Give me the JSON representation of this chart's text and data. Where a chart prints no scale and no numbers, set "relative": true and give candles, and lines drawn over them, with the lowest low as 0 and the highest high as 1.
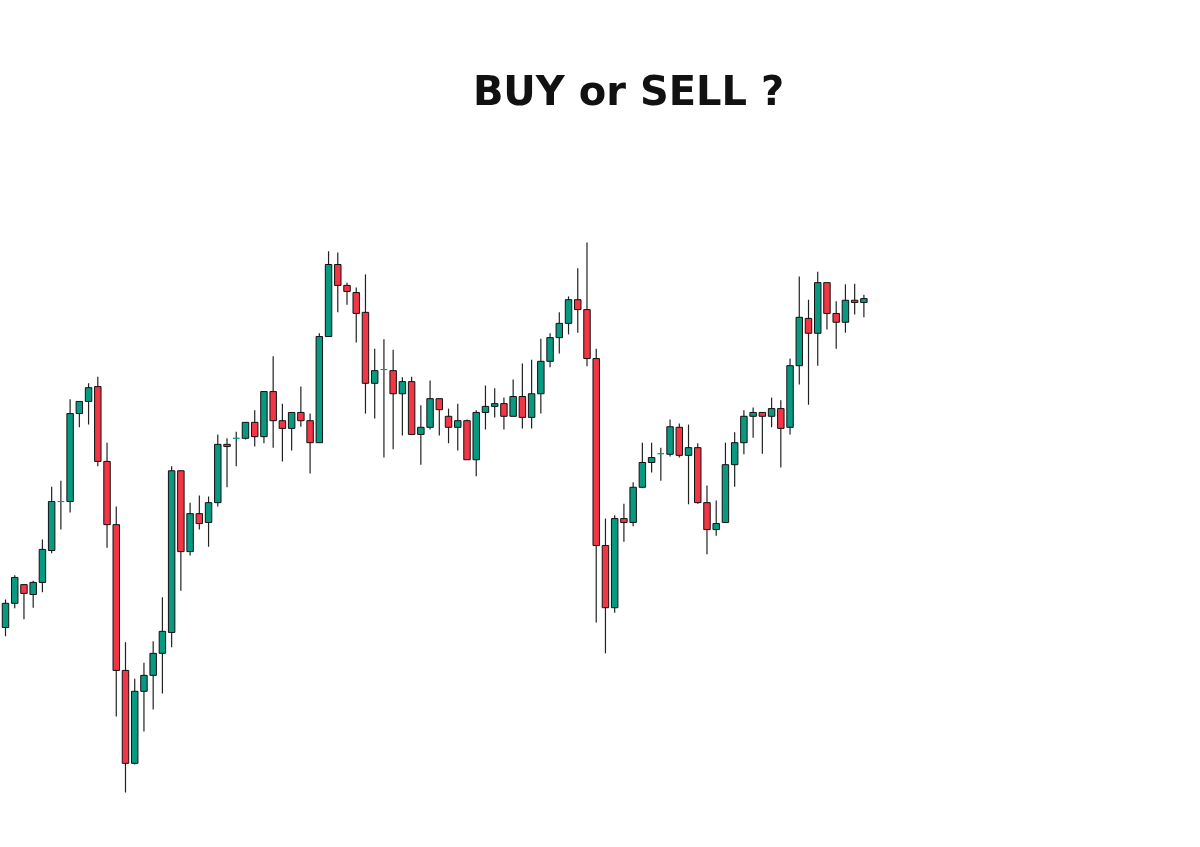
{
  "chart_data": {
    "type": "candlestick",
    "title": "BUY or SELL ?",
    "relative": true,
    "categories": [
      null,
      null,
      null,
      null,
      null,
      null,
      null,
      null,
      null,
      null,
      null,
      null,
      null,
      null,
      null,
      null,
      null,
      null,
      null,
      null,
      null,
      null,
      null,
      null,
      null,
      null,
      null,
      null,
      null,
      null,
      null,
      null,
      null,
      null,
      null,
      null,
      null,
      null,
      null,
      null,
      null,
      null,
      null,
      null,
      null,
      null,
      null,
      null,
      null,
      null,
      null,
      null,
      null,
      null,
      null,
      null,
      null,
      null,
      null,
      null,
      null,
      null,
      null,
      null,
      null,
      null,
      null,
      null,
      null,
      null,
      null,
      null,
      null,
      null,
      null,
      null,
      null,
      null,
      null,
      null,
      null,
      null,
      null,
      null,
      null,
      null,
      null,
      null,
      null,
      null,
      null,
      null,
      null,
      null
    ],
    "ohlc": [
      [
        0.3,
        0.351,
        0.284,
        0.344
      ],
      [
        0.344,
        0.395,
        0.335,
        0.391
      ],
      [
        0.378,
        0.378,
        0.315,
        0.362
      ],
      [
        0.36,
        0.385,
        0.336,
        0.382
      ],
      [
        0.382,
        0.46,
        0.364,
        0.442
      ],
      [
        0.44,
        0.556,
        0.435,
        0.529
      ],
      [
        0.529,
        0.567,
        0.478,
        0.529
      ],
      [
        0.529,
        0.715,
        0.509,
        0.689
      ],
      [
        0.689,
        0.711,
        0.664,
        0.711
      ],
      [
        0.711,
        0.744,
        0.669,
        0.736
      ],
      [
        0.738,
        0.756,
        0.593,
        0.602
      ],
      [
        0.602,
        0.636,
        0.445,
        0.487
      ],
      [
        0.487,
        0.52,
        0.138,
        0.222
      ],
      [
        0.222,
        0.273,
        0.0,
        0.053
      ],
      [
        0.053,
        0.207,
        0.051,
        0.184
      ],
      [
        0.184,
        0.236,
        0.111,
        0.213
      ],
      [
        0.213,
        0.275,
        0.151,
        0.253
      ],
      [
        0.253,
        0.355,
        0.18,
        0.293
      ],
      [
        0.291,
        0.593,
        0.264,
        0.585
      ],
      [
        0.585,
        0.585,
        0.367,
        0.438
      ],
      [
        0.438,
        0.527,
        0.431,
        0.507
      ],
      [
        0.507,
        0.54,
        0.478,
        0.489
      ],
      [
        0.491,
        0.538,
        0.447,
        0.527
      ],
      [
        0.527,
        0.651,
        0.52,
        0.633
      ],
      [
        0.633,
        0.644,
        0.555,
        0.629
      ],
      [
        0.644,
        0.656,
        0.593,
        0.644
      ],
      [
        0.644,
        0.673,
        0.642,
        0.673
      ],
      [
        0.673,
        0.695,
        0.629,
        0.647
      ],
      [
        0.647,
        0.729,
        0.635,
        0.729
      ],
      [
        0.729,
        0.793,
        0.627,
        0.676
      ],
      [
        0.676,
        0.707,
        0.602,
        0.662
      ],
      [
        0.662,
        0.691,
        0.622,
        0.691
      ],
      [
        0.691,
        0.738,
        0.665,
        0.676
      ],
      [
        0.676,
        0.689,
        0.58,
        0.636
      ],
      [
        0.636,
        0.835,
        0.636,
        0.829
      ],
      [
        0.829,
        0.984,
        0.829,
        0.96
      ],
      [
        0.96,
        0.982,
        0.873,
        0.922
      ],
      [
        0.922,
        0.927,
        0.887,
        0.911
      ],
      [
        0.909,
        0.918,
        0.818,
        0.871
      ],
      [
        0.873,
        0.942,
        0.689,
        0.744
      ],
      [
        0.744,
        0.807,
        0.68,
        0.767
      ],
      [
        0.769,
        0.824,
        0.609,
        0.769
      ],
      [
        0.767,
        0.805,
        0.624,
        0.725
      ],
      [
        0.725,
        0.755,
        0.649,
        0.747
      ],
      [
        0.747,
        0.756,
        0.651,
        0.651
      ],
      [
        0.651,
        0.704,
        0.596,
        0.664
      ],
      [
        0.664,
        0.749,
        0.66,
        0.716
      ],
      [
        0.716,
        0.716,
        0.649,
        0.696
      ],
      [
        0.684,
        0.698,
        0.635,
        0.664
      ],
      [
        0.664,
        0.707,
        0.622,
        0.676
      ],
      [
        0.676,
        0.678,
        0.605,
        0.605
      ],
      [
        0.605,
        0.695,
        0.575,
        0.691
      ],
      [
        0.691,
        0.74,
        0.66,
        0.702
      ],
      [
        0.702,
        0.735,
        0.682,
        0.707
      ],
      [
        0.707,
        0.718,
        0.66,
        0.684
      ],
      [
        0.684,
        0.751,
        0.684,
        0.72
      ],
      [
        0.72,
        0.78,
        0.662,
        0.682
      ],
      [
        0.682,
        0.787,
        0.662,
        0.725
      ],
      [
        0.725,
        0.825,
        0.689,
        0.784
      ],
      [
        0.784,
        0.835,
        0.773,
        0.827
      ],
      [
        0.827,
        0.873,
        0.798,
        0.853
      ],
      [
        0.853,
        0.902,
        0.833,
        0.896
      ],
      [
        0.896,
        0.953,
        0.836,
        0.878
      ],
      [
        0.878,
        1.0,
        0.775,
        0.789
      ],
      [
        0.789,
        0.807,
        0.309,
        0.449
      ],
      [
        0.449,
        0.498,
        0.253,
        0.336
      ],
      [
        0.336,
        0.504,
        0.327,
        0.498
      ],
      [
        0.498,
        0.525,
        0.456,
        0.491
      ],
      [
        0.491,
        0.564,
        0.484,
        0.555
      ],
      [
        0.555,
        0.636,
        0.553,
        0.6
      ],
      [
        0.6,
        0.636,
        0.582,
        0.609
      ],
      [
        0.616,
        0.627,
        0.567,
        0.616
      ],
      [
        0.615,
        0.678,
        0.611,
        0.665
      ],
      [
        0.664,
        0.671,
        0.609,
        0.613
      ],
      [
        0.613,
        0.669,
        0.524,
        0.627
      ],
      [
        0.627,
        0.635,
        0.525,
        0.527
      ],
      [
        0.527,
        0.558,
        0.433,
        0.478
      ],
      [
        0.478,
        0.531,
        0.467,
        0.489
      ],
      [
        0.491,
        0.636,
        0.491,
        0.596
      ],
      [
        0.596,
        0.655,
        0.556,
        0.636
      ],
      [
        0.636,
        0.695,
        0.615,
        0.684
      ],
      [
        0.684,
        0.7,
        0.645,
        0.691
      ],
      [
        0.691,
        0.691,
        0.616,
        0.684
      ],
      [
        0.684,
        0.718,
        0.664,
        0.698
      ],
      [
        0.698,
        0.713,
        0.591,
        0.662
      ],
      [
        0.664,
        0.789,
        0.651,
        0.776
      ],
      [
        0.776,
        0.938,
        0.742,
        0.864
      ],
      [
        0.862,
        0.896,
        0.705,
        0.835
      ],
      [
        0.835,
        0.947,
        0.776,
        0.927
      ],
      [
        0.927,
        0.927,
        0.842,
        0.871
      ],
      [
        0.871,
        0.893,
        0.807,
        0.855
      ],
      [
        0.855,
        0.924,
        0.836,
        0.895
      ],
      [
        0.895,
        0.925,
        0.869,
        0.891
      ],
      [
        0.891,
        0.905,
        0.864,
        0.898
      ]
    ],
    "colors": [
      "#089981",
      "#089981",
      "#f23645",
      "#089981",
      "#089981",
      "#089981",
      "#089981",
      "#089981",
      "#089981",
      "#089981",
      "#f23645",
      "#f23645",
      "#f23645",
      "#f23645",
      "#089981",
      "#089981",
      "#089981",
      "#089981",
      "#089981",
      "#f23645",
      "#089981",
      "#f23645",
      "#089981",
      "#089981",
      "#f23645",
      "#089981",
      "#089981",
      "#f23645",
      "#089981",
      "#f23645",
      "#f23645",
      "#089981",
      "#f23645",
      "#f23645",
      "#089981",
      "#089981",
      "#f23645",
      "#f23645",
      "#f23645",
      "#f23645",
      "#089981",
      "#089981",
      "#f23645",
      "#089981",
      "#f23645",
      "#089981",
      "#089981",
      "#f23645",
      "#f23645",
      "#089981",
      "#f23645",
      "#089981",
      "#089981",
      "#089981",
      "#f23645",
      "#089981",
      "#f23645",
      "#089981",
      "#089981",
      "#089981",
      "#089981",
      "#089981",
      "#f23645",
      "#f23645",
      "#f23645",
      "#f23645",
      "#089981",
      "#f23645",
      "#089981",
      "#089981",
      "#089981",
      "#089981",
      "#089981",
      "#f23645",
      "#089981",
      "#f23645",
      "#f23645",
      "#089981",
      "#089981",
      "#089981",
      "#089981",
      "#089981",
      "#f23645",
      "#089981",
      "#f23645",
      "#089981",
      "#089981",
      "#f23645",
      "#089981",
      "#f23645",
      "#f23645",
      "#089981",
      "#f23645",
      "#089981"
    ]
  }
}
